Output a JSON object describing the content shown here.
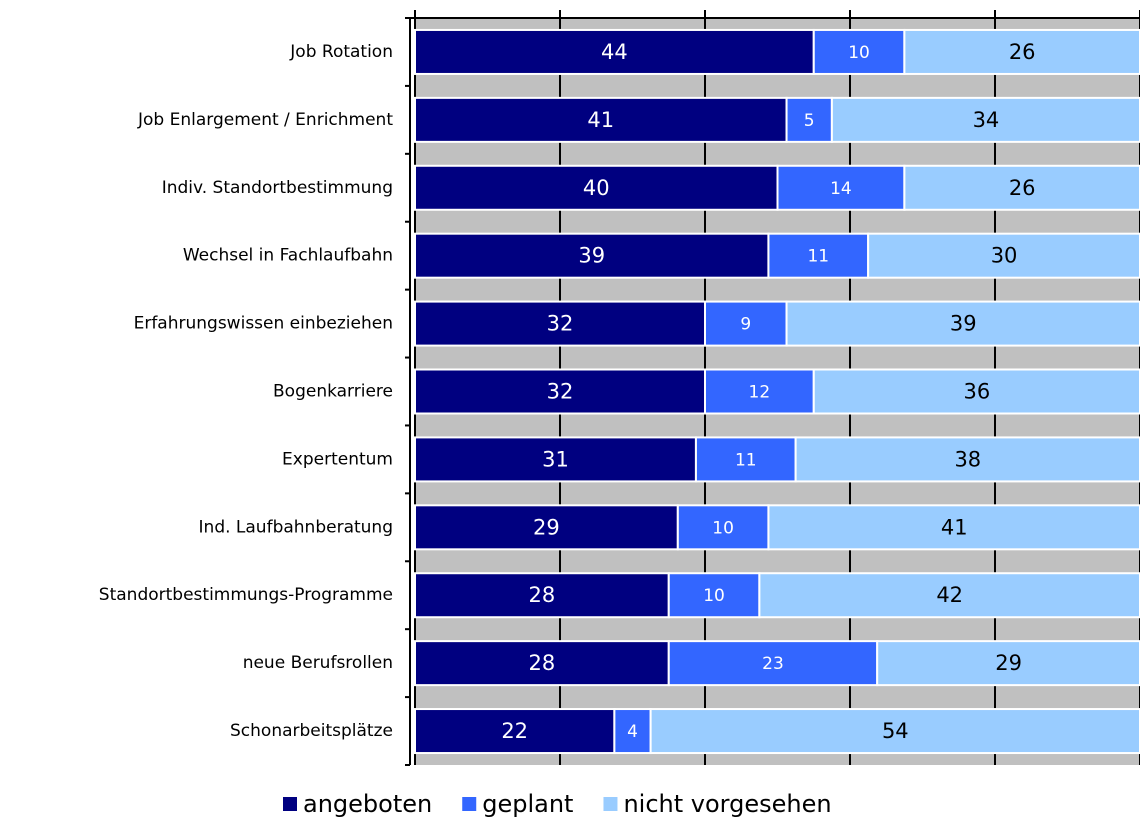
{
  "chart_data": {
    "type": "stacked_bar_horizontal",
    "categories": [
      "Job Rotation",
      "Job Enlargement / Enrichment",
      "Indiv. Standortbestimmung",
      "Wechsel in Fachlaufbahn",
      "Erfahrungswissen einbeziehen",
      "Bogenkarriere",
      "Expertentum",
      "Ind. Laufbahnberatung",
      "Standortbestimmungs-Programme",
      "neue Berufsrollen",
      "Schonarbeitsplätze"
    ],
    "series": [
      {
        "name": "angeboten",
        "color": "#000080",
        "values": [
          44,
          41,
          40,
          39,
          32,
          32,
          31,
          29,
          28,
          28,
          22
        ]
      },
      {
        "name": "geplant",
        "color": "#3366ff",
        "values": [
          10,
          5,
          14,
          11,
          9,
          12,
          11,
          10,
          10,
          23,
          4
        ]
      },
      {
        "name": "nicht vorgesehen",
        "color": "#99ccff",
        "values": [
          26,
          34,
          26,
          30,
          39,
          36,
          38,
          41,
          42,
          29,
          54
        ]
      }
    ],
    "xlim": [
      0,
      80
    ],
    "xticks": [
      0,
      16,
      32,
      48,
      64,
      80
    ],
    "grid": true,
    "legend": "bottom"
  }
}
